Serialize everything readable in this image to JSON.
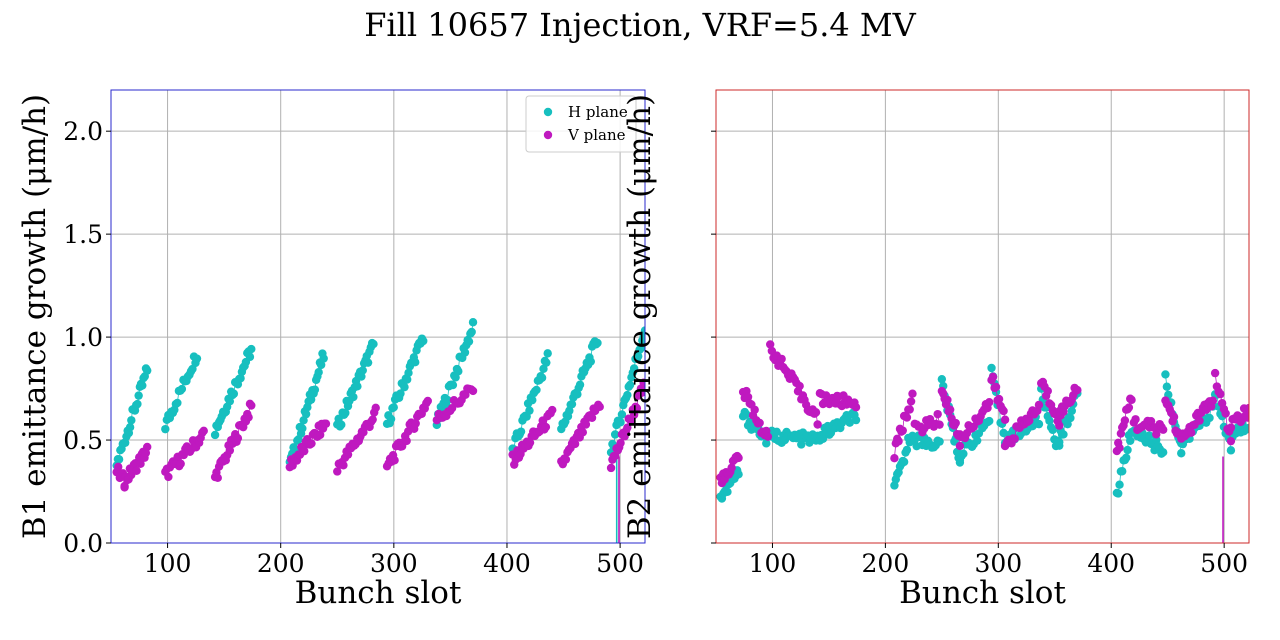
{
  "figure": {
    "title": "Fill 10657 Injection, VRF=5.4 MV"
  },
  "colors": {
    "h_plane": "#17bfbf",
    "v_plane": "#bf19bf",
    "b1_frame": "#2929cc",
    "b2_frame": "#cc2929",
    "grid": "#b0b0b0"
  },
  "chart_data": [
    {
      "type": "scatter",
      "title": "",
      "xlabel": "Bunch slot",
      "ylabel": "B1 emittance growth (μm/h)",
      "xlim": [
        50,
        522
      ],
      "ylim": [
        0.0,
        2.2
      ],
      "xticks": [
        100,
        200,
        300,
        400,
        500
      ],
      "yticks": [
        0.0,
        0.5,
        1.0,
        1.5,
        2.0
      ],
      "ytick_labels": [
        "0.0",
        "0.5",
        "1.0",
        "1.5",
        "2.0"
      ],
      "grid": true,
      "legend": "top-right",
      "series": [
        {
          "name": "H plane",
          "color": "h_plane",
          "ramps": [
            {
              "x0": 55,
              "y0": 0.38,
              "x1": 82,
              "y1": 0.84,
              "n": 26
            },
            {
              "x0": 98,
              "y0": 0.57,
              "x1": 126,
              "y1": 0.92,
              "n": 22
            },
            {
              "x0": 142,
              "y0": 0.55,
              "x1": 174,
              "y1": 0.94,
              "n": 28
            },
            {
              "x0": 208,
              "y0": 0.38,
              "x1": 238,
              "y1": 0.91,
              "n": 28
            },
            {
              "x0": 250,
              "y0": 0.56,
              "x1": 282,
              "y1": 0.96,
              "n": 28
            },
            {
              "x0": 294,
              "y0": 0.58,
              "x1": 326,
              "y1": 1.0,
              "n": 28
            },
            {
              "x0": 338,
              "y0": 0.58,
              "x1": 370,
              "y1": 1.05,
              "n": 28
            },
            {
              "x0": 405,
              "y0": 0.45,
              "x1": 436,
              "y1": 0.9,
              "n": 26
            },
            {
              "x0": 448,
              "y0": 0.55,
              "x1": 480,
              "y1": 0.99,
              "n": 28
            },
            {
              "x0": 492,
              "y0": 0.45,
              "x1": 522,
              "y1": 1.04,
              "n": 26
            }
          ],
          "spikes": [
            {
              "x": 497,
              "y": 0.0
            }
          ]
        },
        {
          "name": "V plane",
          "color": "v_plane",
          "ramps": [
            {
              "x0": 55,
              "y0": 0.35,
              "x1": 62,
              "y1": 0.3,
              "n": 6
            },
            {
              "x0": 62,
              "y0": 0.3,
              "x1": 82,
              "y1": 0.45,
              "n": 18
            },
            {
              "x0": 98,
              "y0": 0.33,
              "x1": 132,
              "y1": 0.53,
              "n": 26
            },
            {
              "x0": 142,
              "y0": 0.32,
              "x1": 174,
              "y1": 0.66,
              "n": 28
            },
            {
              "x0": 208,
              "y0": 0.38,
              "x1": 240,
              "y1": 0.58,
              "n": 26
            },
            {
              "x0": 250,
              "y0": 0.36,
              "x1": 284,
              "y1": 0.63,
              "n": 26
            },
            {
              "x0": 294,
              "y0": 0.37,
              "x1": 330,
              "y1": 0.69,
              "n": 28
            },
            {
              "x0": 338,
              "y0": 0.6,
              "x1": 370,
              "y1": 0.75,
              "n": 20
            },
            {
              "x0": 405,
              "y0": 0.4,
              "x1": 440,
              "y1": 0.62,
              "n": 26
            },
            {
              "x0": 448,
              "y0": 0.38,
              "x1": 482,
              "y1": 0.68,
              "n": 26
            },
            {
              "x0": 492,
              "y0": 0.38,
              "x1": 522,
              "y1": 0.77,
              "n": 26
            }
          ],
          "spikes": [
            {
              "x": 499,
              "y": 0.0
            }
          ]
        }
      ]
    },
    {
      "type": "scatter",
      "title": "",
      "xlabel": "Bunch slot",
      "ylabel": "B2 emittance growth (μm/h)",
      "xlim": [
        50,
        522
      ],
      "ylim": [
        0.0,
        2.2
      ],
      "xticks": [
        100,
        200,
        300,
        400,
        500
      ],
      "yticks": [
        0.0,
        0.5,
        1.0,
        1.5,
        2.0
      ],
      "ytick_labels": [
        "",
        "",
        "",
        "",
        ""
      ],
      "grid": true,
      "legend": "none",
      "series": [
        {
          "name": "H plane",
          "color": "h_plane",
          "ramps": [
            {
              "x0": 54,
              "y0": 0.22,
              "x1": 70,
              "y1": 0.34,
              "n": 14
            },
            {
              "x0": 74,
              "y0": 0.62,
              "x1": 96,
              "y1": 0.5,
              "n": 16
            },
            {
              "x0": 98,
              "y0": 0.52,
              "x1": 140,
              "y1": 0.5,
              "n": 30
            },
            {
              "x0": 142,
              "y0": 0.52,
              "x1": 174,
              "y1": 0.62,
              "n": 24
            },
            {
              "x0": 208,
              "y0": 0.26,
              "x1": 224,
              "y1": 0.55,
              "n": 14
            },
            {
              "x0": 226,
              "y0": 0.5,
              "x1": 248,
              "y1": 0.48,
              "n": 14
            },
            {
              "x0": 250,
              "y0": 0.78,
              "x1": 266,
              "y1": 0.4,
              "n": 14
            },
            {
              "x0": 266,
              "y0": 0.42,
              "x1": 292,
              "y1": 0.6,
              "n": 18
            },
            {
              "x0": 294,
              "y0": 0.82,
              "x1": 306,
              "y1": 0.5,
              "n": 10
            },
            {
              "x0": 306,
              "y0": 0.5,
              "x1": 336,
              "y1": 0.6,
              "n": 22
            },
            {
              "x0": 338,
              "y0": 0.72,
              "x1": 354,
              "y1": 0.45,
              "n": 12
            },
            {
              "x0": 354,
              "y0": 0.5,
              "x1": 370,
              "y1": 0.72,
              "n": 14
            },
            {
              "x0": 405,
              "y0": 0.24,
              "x1": 418,
              "y1": 0.55,
              "n": 12
            },
            {
              "x0": 420,
              "y0": 0.55,
              "x1": 446,
              "y1": 0.45,
              "n": 18
            },
            {
              "x0": 448,
              "y0": 0.8,
              "x1": 462,
              "y1": 0.45,
              "n": 12
            },
            {
              "x0": 462,
              "y0": 0.48,
              "x1": 490,
              "y1": 0.65,
              "n": 20
            },
            {
              "x0": 492,
              "y0": 0.72,
              "x1": 506,
              "y1": 0.46,
              "n": 10
            },
            {
              "x0": 506,
              "y0": 0.52,
              "x1": 522,
              "y1": 0.58,
              "n": 12
            }
          ],
          "spikes": []
        },
        {
          "name": "V plane",
          "color": "v_plane",
          "ramps": [
            {
              "x0": 54,
              "y0": 0.3,
              "x1": 70,
              "y1": 0.42,
              "n": 14
            },
            {
              "x0": 74,
              "y0": 0.74,
              "x1": 96,
              "y1": 0.5,
              "n": 16
            },
            {
              "x0": 98,
              "y0": 0.95,
              "x1": 140,
              "y1": 0.6,
              "n": 30
            },
            {
              "x0": 142,
              "y0": 0.7,
              "x1": 174,
              "y1": 0.68,
              "n": 24
            },
            {
              "x0": 208,
              "y0": 0.44,
              "x1": 224,
              "y1": 0.72,
              "n": 14
            },
            {
              "x0": 226,
              "y0": 0.55,
              "x1": 248,
              "y1": 0.6,
              "n": 14
            },
            {
              "x0": 250,
              "y0": 0.75,
              "x1": 266,
              "y1": 0.5,
              "n": 14
            },
            {
              "x0": 266,
              "y0": 0.5,
              "x1": 292,
              "y1": 0.68,
              "n": 18
            },
            {
              "x0": 294,
              "y0": 0.8,
              "x1": 306,
              "y1": 0.6,
              "n": 10
            },
            {
              "x0": 306,
              "y0": 0.48,
              "x1": 336,
              "y1": 0.66,
              "n": 22
            },
            {
              "x0": 338,
              "y0": 0.78,
              "x1": 354,
              "y1": 0.6,
              "n": 12
            },
            {
              "x0": 354,
              "y0": 0.62,
              "x1": 370,
              "y1": 0.76,
              "n": 14
            },
            {
              "x0": 405,
              "y0": 0.44,
              "x1": 418,
              "y1": 0.72,
              "n": 12
            },
            {
              "x0": 420,
              "y0": 0.58,
              "x1": 446,
              "y1": 0.55,
              "n": 18
            },
            {
              "x0": 448,
              "y0": 0.7,
              "x1": 462,
              "y1": 0.5,
              "n": 12
            },
            {
              "x0": 462,
              "y0": 0.5,
              "x1": 490,
              "y1": 0.7,
              "n": 20
            },
            {
              "x0": 492,
              "y0": 0.8,
              "x1": 506,
              "y1": 0.5,
              "n": 10
            },
            {
              "x0": 506,
              "y0": 0.58,
              "x1": 522,
              "y1": 0.64,
              "n": 12
            }
          ],
          "spikes": [
            {
              "x": 499,
              "y": 0.0
            }
          ]
        }
      ]
    }
  ]
}
